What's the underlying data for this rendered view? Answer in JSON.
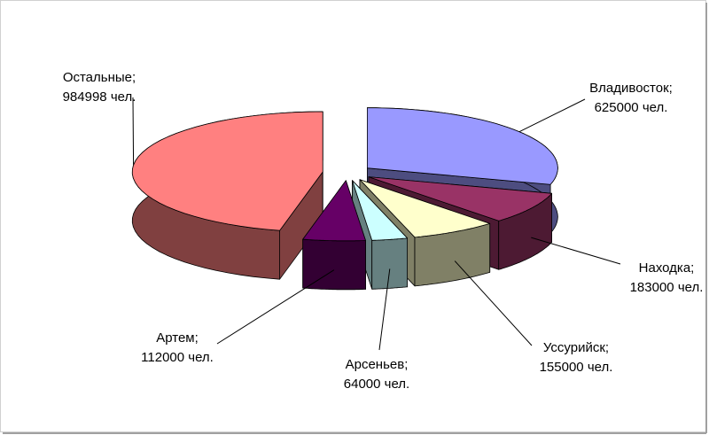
{
  "chart_data": {
    "type": "pie3d",
    "categories": [
      "Владивосток;",
      "Находка;",
      "Уссурийск;",
      "Арсеньев;",
      "Артем;",
      "Остальные;"
    ],
    "values": [
      625000,
      183000,
      155000,
      64000,
      112000,
      984998
    ],
    "value_labels": [
      "625000 чел.",
      "183000 чел.",
      "155000 чел.",
      "64000 чел.",
      "112000 чел.",
      "984998 чел."
    ],
    "colors": [
      "#9999ff",
      "#993366",
      "#ffffcc",
      "#ccffff",
      "#660066",
      "#ff8080"
    ]
  }
}
